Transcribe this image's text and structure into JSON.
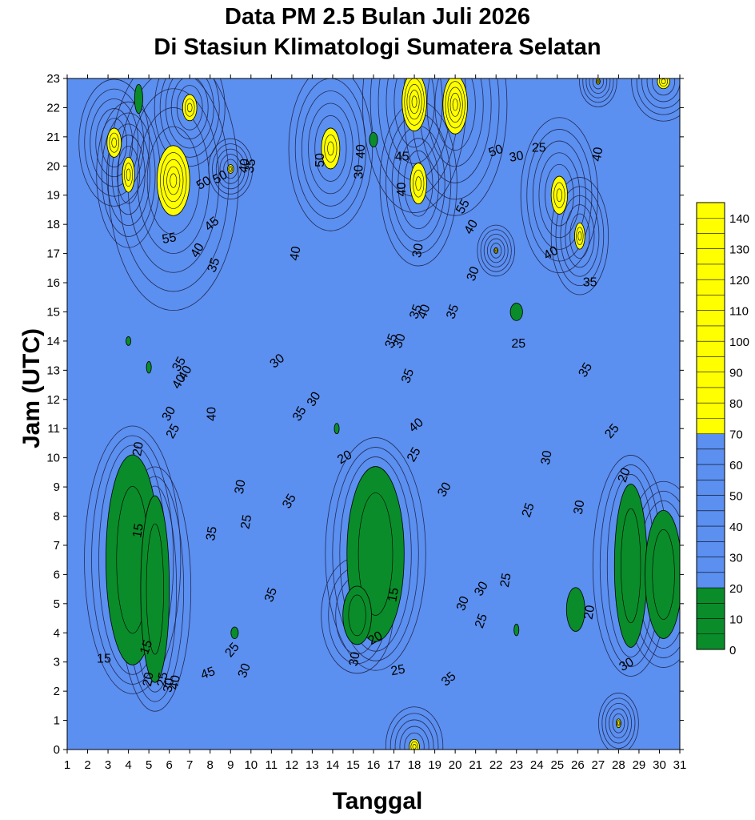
{
  "chart_data": {
    "type": "heatmap",
    "title_line1": "Data PM 2.5 Bulan Juli 2026",
    "title_line2": "Di Stasiun Klimatologi Sumatera Selatan",
    "xlabel": "Tanggal",
    "ylabel": "Jam (UTC)",
    "x_ticks": [
      1,
      2,
      3,
      4,
      5,
      6,
      7,
      8,
      9,
      10,
      11,
      12,
      13,
      14,
      15,
      16,
      17,
      18,
      19,
      20,
      21,
      22,
      23,
      24,
      25,
      26,
      27,
      28,
      29,
      30,
      31
    ],
    "y_ticks": [
      0,
      1,
      2,
      3,
      4,
      5,
      6,
      7,
      8,
      9,
      10,
      11,
      12,
      13,
      14,
      15,
      16,
      17,
      18,
      19,
      20,
      21,
      22,
      23
    ],
    "xlim": [
      1,
      31
    ],
    "ylim": [
      0,
      23
    ],
    "colorbar": {
      "ticks": [
        0,
        10,
        20,
        30,
        40,
        50,
        60,
        70,
        80,
        90,
        100,
        110,
        120,
        130,
        140
      ],
      "bands": [
        {
          "from": 0,
          "to": 20,
          "color": "#0a8c2a"
        },
        {
          "from": 20,
          "to": 70,
          "color": "#5b8ff0"
        },
        {
          "from": 70,
          "to": 145,
          "color": "#ffff00"
        }
      ]
    },
    "low_regions": [
      {
        "cx": 4.2,
        "cy": 6.5,
        "rx": 1.3,
        "ry": 3.6,
        "value": 15
      },
      {
        "cx": 5.3,
        "cy": 5.5,
        "rx": 0.7,
        "ry": 3.2,
        "value": 15
      },
      {
        "cx": 16.1,
        "cy": 6.7,
        "rx": 1.4,
        "ry": 3.0,
        "value": 15
      },
      {
        "cx": 15.2,
        "cy": 4.6,
        "rx": 0.7,
        "ry": 1.0,
        "value": 18
      },
      {
        "cx": 28.6,
        "cy": 6.3,
        "rx": 0.8,
        "ry": 2.8,
        "value": 18
      },
      {
        "cx": 30.2,
        "cy": 6.0,
        "rx": 0.9,
        "ry": 2.2,
        "value": 18
      },
      {
        "cx": 25.9,
        "cy": 4.8,
        "rx": 0.45,
        "ry": 0.75,
        "value": 18
      },
      {
        "cx": 4.5,
        "cy": 22.3,
        "rx": 0.2,
        "ry": 0.5,
        "value": 18
      },
      {
        "cx": 16.0,
        "cy": 20.9,
        "rx": 0.2,
        "ry": 0.25,
        "value": 18
      },
      {
        "cx": 23.0,
        "cy": 15.0,
        "rx": 0.3,
        "ry": 0.3,
        "value": 18
      },
      {
        "cx": 9.2,
        "cy": 4.0,
        "rx": 0.18,
        "ry": 0.2,
        "value": 18
      },
      {
        "cx": 4.0,
        "cy": 14.0,
        "rx": 0.12,
        "ry": 0.15,
        "value": 18
      },
      {
        "cx": 5.0,
        "cy": 13.1,
        "rx": 0.12,
        "ry": 0.2,
        "value": 18
      },
      {
        "cx": 14.2,
        "cy": 11.0,
        "rx": 0.12,
        "ry": 0.18,
        "value": 18
      },
      {
        "cx": 23.0,
        "cy": 4.1,
        "rx": 0.12,
        "ry": 0.2,
        "value": 18
      }
    ],
    "high_regions": [
      {
        "cx": 3.3,
        "cy": 20.8,
        "rx": 0.35,
        "ry": 0.5,
        "value": 100
      },
      {
        "cx": 4.0,
        "cy": 19.7,
        "rx": 0.3,
        "ry": 0.6,
        "value": 100
      },
      {
        "cx": 6.2,
        "cy": 19.5,
        "rx": 0.8,
        "ry": 1.2,
        "value": 130
      },
      {
        "cx": 7.0,
        "cy": 22.0,
        "rx": 0.35,
        "ry": 0.45,
        "value": 90
      },
      {
        "cx": 9.0,
        "cy": 19.9,
        "rx": 0.15,
        "ry": 0.15,
        "value": 80
      },
      {
        "cx": 13.9,
        "cy": 20.6,
        "rx": 0.45,
        "ry": 0.7,
        "value": 100
      },
      {
        "cx": 18.0,
        "cy": 22.2,
        "rx": 0.6,
        "ry": 1.0,
        "value": 120
      },
      {
        "cx": 20.0,
        "cy": 22.1,
        "rx": 0.6,
        "ry": 1.0,
        "value": 120
      },
      {
        "cx": 18.2,
        "cy": 19.4,
        "rx": 0.4,
        "ry": 0.7,
        "value": 100
      },
      {
        "cx": 25.1,
        "cy": 19.0,
        "rx": 0.4,
        "ry": 0.65,
        "value": 100
      },
      {
        "cx": 26.1,
        "cy": 17.6,
        "rx": 0.25,
        "ry": 0.45,
        "value": 90
      },
      {
        "cx": 30.2,
        "cy": 22.9,
        "rx": 0.3,
        "ry": 0.25,
        "value": 90
      },
      {
        "cx": 27.0,
        "cy": 22.9,
        "rx": 0.1,
        "ry": 0.1,
        "value": 80
      },
      {
        "cx": 18.0,
        "cy": 0.1,
        "rx": 0.25,
        "ry": 0.25,
        "value": 80
      },
      {
        "cx": 28.0,
        "cy": 0.9,
        "rx": 0.12,
        "ry": 0.15,
        "value": 80
      },
      {
        "cx": 22.0,
        "cy": 17.1,
        "rx": 0.1,
        "ry": 0.1,
        "value": 80
      }
    ],
    "contour_labels": [
      {
        "x": 2.8,
        "y": 3.1,
        "text": "15",
        "rot": 0
      },
      {
        "x": 4.5,
        "y": 7.5,
        "text": "15",
        "rot": -80
      },
      {
        "x": 4.9,
        "y": 3.5,
        "text": "15",
        "rot": -70
      },
      {
        "x": 4.5,
        "y": 10.3,
        "text": "20",
        "rot": -80
      },
      {
        "x": 5.0,
        "y": 2.4,
        "text": "20",
        "rot": -80
      },
      {
        "x": 5.7,
        "y": 2.4,
        "text": "25",
        "rot": -80
      },
      {
        "x": 6.0,
        "y": 2.2,
        "text": "30",
        "rot": -80
      },
      {
        "x": 6.3,
        "y": 2.3,
        "text": "40",
        "rot": -80
      },
      {
        "x": 7.9,
        "y": 2.6,
        "text": "45",
        "rot": -20
      },
      {
        "x": 9.7,
        "y": 2.7,
        "text": "30",
        "rot": -70
      },
      {
        "x": 9.1,
        "y": 3.4,
        "text": "25",
        "rot": -50
      },
      {
        "x": 11.0,
        "y": 5.3,
        "text": "35",
        "rot": -70
      },
      {
        "x": 9.8,
        "y": 7.8,
        "text": "25",
        "rot": -80
      },
      {
        "x": 8.1,
        "y": 7.4,
        "text": "35",
        "rot": -80
      },
      {
        "x": 9.5,
        "y": 9.0,
        "text": "30",
        "rot": -80
      },
      {
        "x": 11.9,
        "y": 8.5,
        "text": "35",
        "rot": -60
      },
      {
        "x": 11.3,
        "y": 13.3,
        "text": "30",
        "rot": -40
      },
      {
        "x": 8.1,
        "y": 11.5,
        "text": "40",
        "rot": -90
      },
      {
        "x": 6.0,
        "y": 11.5,
        "text": "30",
        "rot": -60
      },
      {
        "x": 6.2,
        "y": 10.9,
        "text": "25",
        "rot": -60
      },
      {
        "x": 6.5,
        "y": 12.6,
        "text": "40",
        "rot": -60
      },
      {
        "x": 6.5,
        "y": 13.2,
        "text": "35",
        "rot": -60
      },
      {
        "x": 6.8,
        "y": 12.9,
        "text": "40",
        "rot": -60
      },
      {
        "x": 12.4,
        "y": 11.5,
        "text": "35",
        "rot": -60
      },
      {
        "x": 13.1,
        "y": 12.0,
        "text": "30",
        "rot": -60
      },
      {
        "x": 6.0,
        "y": 17.5,
        "text": "55",
        "rot": -10
      },
      {
        "x": 7.4,
        "y": 17.1,
        "text": "40",
        "rot": -60
      },
      {
        "x": 8.1,
        "y": 18.0,
        "text": "45",
        "rot": -40
      },
      {
        "x": 8.2,
        "y": 16.6,
        "text": "35",
        "rot": -70
      },
      {
        "x": 7.7,
        "y": 19.4,
        "text": "50",
        "rot": -30
      },
      {
        "x": 8.5,
        "y": 19.6,
        "text": "50",
        "rot": -30
      },
      {
        "x": 10.0,
        "y": 20.0,
        "text": "35",
        "rot": -80
      },
      {
        "x": 9.7,
        "y": 20.0,
        "text": "40",
        "rot": -80
      },
      {
        "x": 12.2,
        "y": 17.0,
        "text": "40",
        "rot": -80
      },
      {
        "x": 15.3,
        "y": 19.8,
        "text": "30",
        "rot": -90
      },
      {
        "x": 15.4,
        "y": 20.5,
        "text": "40",
        "rot": -90
      },
      {
        "x": 13.4,
        "y": 20.2,
        "text": "50",
        "rot": -90
      },
      {
        "x": 14.6,
        "y": 10.0,
        "text": "20",
        "rot": -30
      },
      {
        "x": 17.0,
        "y": 5.3,
        "text": "15",
        "rot": -80
      },
      {
        "x": 16.1,
        "y": 3.8,
        "text": "20",
        "rot": -30
      },
      {
        "x": 17.2,
        "y": 2.7,
        "text": "25",
        "rot": -10
      },
      {
        "x": 15.1,
        "y": 3.1,
        "text": "30",
        "rot": -80
      },
      {
        "x": 18.0,
        "y": 10.1,
        "text": "25",
        "rot": -60
      },
      {
        "x": 18.1,
        "y": 11.1,
        "text": "40",
        "rot": -40
      },
      {
        "x": 19.5,
        "y": 8.9,
        "text": "30",
        "rot": -60
      },
      {
        "x": 17.7,
        "y": 12.8,
        "text": "35",
        "rot": -70
      },
      {
        "x": 16.9,
        "y": 14.0,
        "text": "35",
        "rot": -70
      },
      {
        "x": 17.3,
        "y": 14.0,
        "text": "30",
        "rot": -70
      },
      {
        "x": 18.1,
        "y": 15.0,
        "text": "35",
        "rot": -70
      },
      {
        "x": 18.5,
        "y": 15.0,
        "text": "40",
        "rot": -70
      },
      {
        "x": 19.9,
        "y": 15.0,
        "text": "35",
        "rot": -70
      },
      {
        "x": 18.2,
        "y": 17.1,
        "text": "30",
        "rot": -80
      },
      {
        "x": 17.4,
        "y": 20.3,
        "text": "45",
        "rot": 0
      },
      {
        "x": 17.4,
        "y": 19.2,
        "text": "40",
        "rot": -90
      },
      {
        "x": 20.4,
        "y": 18.6,
        "text": "55",
        "rot": -60
      },
      {
        "x": 20.8,
        "y": 17.9,
        "text": "40",
        "rot": -60
      },
      {
        "x": 20.9,
        "y": 16.3,
        "text": "30",
        "rot": -70
      },
      {
        "x": 22.0,
        "y": 20.5,
        "text": "50",
        "rot": -20
      },
      {
        "x": 23.0,
        "y": 20.3,
        "text": "30",
        "rot": -10
      },
      {
        "x": 24.1,
        "y": 20.6,
        "text": "25",
        "rot": 0
      },
      {
        "x": 27.0,
        "y": 20.4,
        "text": "40",
        "rot": -80
      },
      {
        "x": 24.7,
        "y": 17.0,
        "text": "40",
        "rot": -30
      },
      {
        "x": 26.6,
        "y": 16.0,
        "text": "35",
        "rot": 0
      },
      {
        "x": 23.1,
        "y": 13.9,
        "text": "25",
        "rot": 0
      },
      {
        "x": 26.4,
        "y": 13.0,
        "text": "35",
        "rot": -60
      },
      {
        "x": 27.7,
        "y": 10.9,
        "text": "25",
        "rot": -50
      },
      {
        "x": 28.3,
        "y": 9.4,
        "text": "20",
        "rot": -70
      },
      {
        "x": 24.5,
        "y": 10.0,
        "text": "30",
        "rot": -80
      },
      {
        "x": 23.6,
        "y": 8.2,
        "text": "25",
        "rot": -70
      },
      {
        "x": 26.1,
        "y": 8.3,
        "text": "30",
        "rot": -80
      },
      {
        "x": 22.5,
        "y": 5.8,
        "text": "25",
        "rot": -80
      },
      {
        "x": 21.3,
        "y": 5.5,
        "text": "30",
        "rot": -60
      },
      {
        "x": 21.3,
        "y": 4.4,
        "text": "25",
        "rot": -70
      },
      {
        "x": 20.4,
        "y": 5.0,
        "text": "30",
        "rot": -70
      },
      {
        "x": 26.6,
        "y": 4.7,
        "text": "20",
        "rot": -80
      },
      {
        "x": 28.4,
        "y": 2.9,
        "text": "30",
        "rot": -30
      },
      {
        "x": 19.7,
        "y": 2.4,
        "text": "35",
        "rot": -40
      }
    ]
  }
}
